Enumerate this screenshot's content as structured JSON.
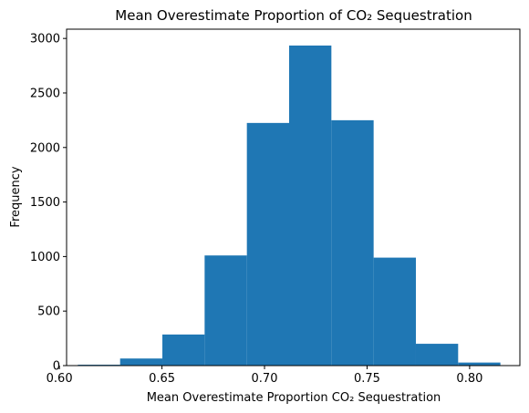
{
  "chart_data": {
    "type": "bar",
    "title": "Mean Overestimate Proportion of CO₂ Sequestration",
    "xlabel": "Mean Overestimate Proportion CO₂ Sequestration",
    "ylabel": "Frequency",
    "xlim": [
      0.6035,
      0.8245
    ],
    "ylim": [
      0,
      3085
    ],
    "bar_color": "#1f77b4",
    "grid": false,
    "bins": [
      {
        "x0": 0.609,
        "x1": 0.6296,
        "value": 8
      },
      {
        "x0": 0.6296,
        "x1": 0.6502,
        "value": 65
      },
      {
        "x0": 0.6502,
        "x1": 0.6708,
        "value": 285
      },
      {
        "x0": 0.6708,
        "x1": 0.6914,
        "value": 1010
      },
      {
        "x0": 0.6914,
        "x1": 0.712,
        "value": 2225
      },
      {
        "x0": 0.712,
        "x1": 0.7326,
        "value": 2935
      },
      {
        "x0": 0.7326,
        "x1": 0.7532,
        "value": 2250
      },
      {
        "x0": 0.7532,
        "x1": 0.7738,
        "value": 990
      },
      {
        "x0": 0.7738,
        "x1": 0.7944,
        "value": 200
      },
      {
        "x0": 0.7944,
        "x1": 0.815,
        "value": 28
      }
    ],
    "x_ticks": [
      0.6,
      0.65,
      0.7,
      0.75,
      0.8
    ],
    "x_tick_labels": [
      "0.60",
      "0.65",
      "0.70",
      "0.75",
      "0.80"
    ],
    "y_ticks": [
      0,
      500,
      1000,
      1500,
      2000,
      2500,
      3000
    ],
    "y_tick_labels": [
      "0",
      "500",
      "1000",
      "1500",
      "2000",
      "2500",
      "3000"
    ]
  }
}
